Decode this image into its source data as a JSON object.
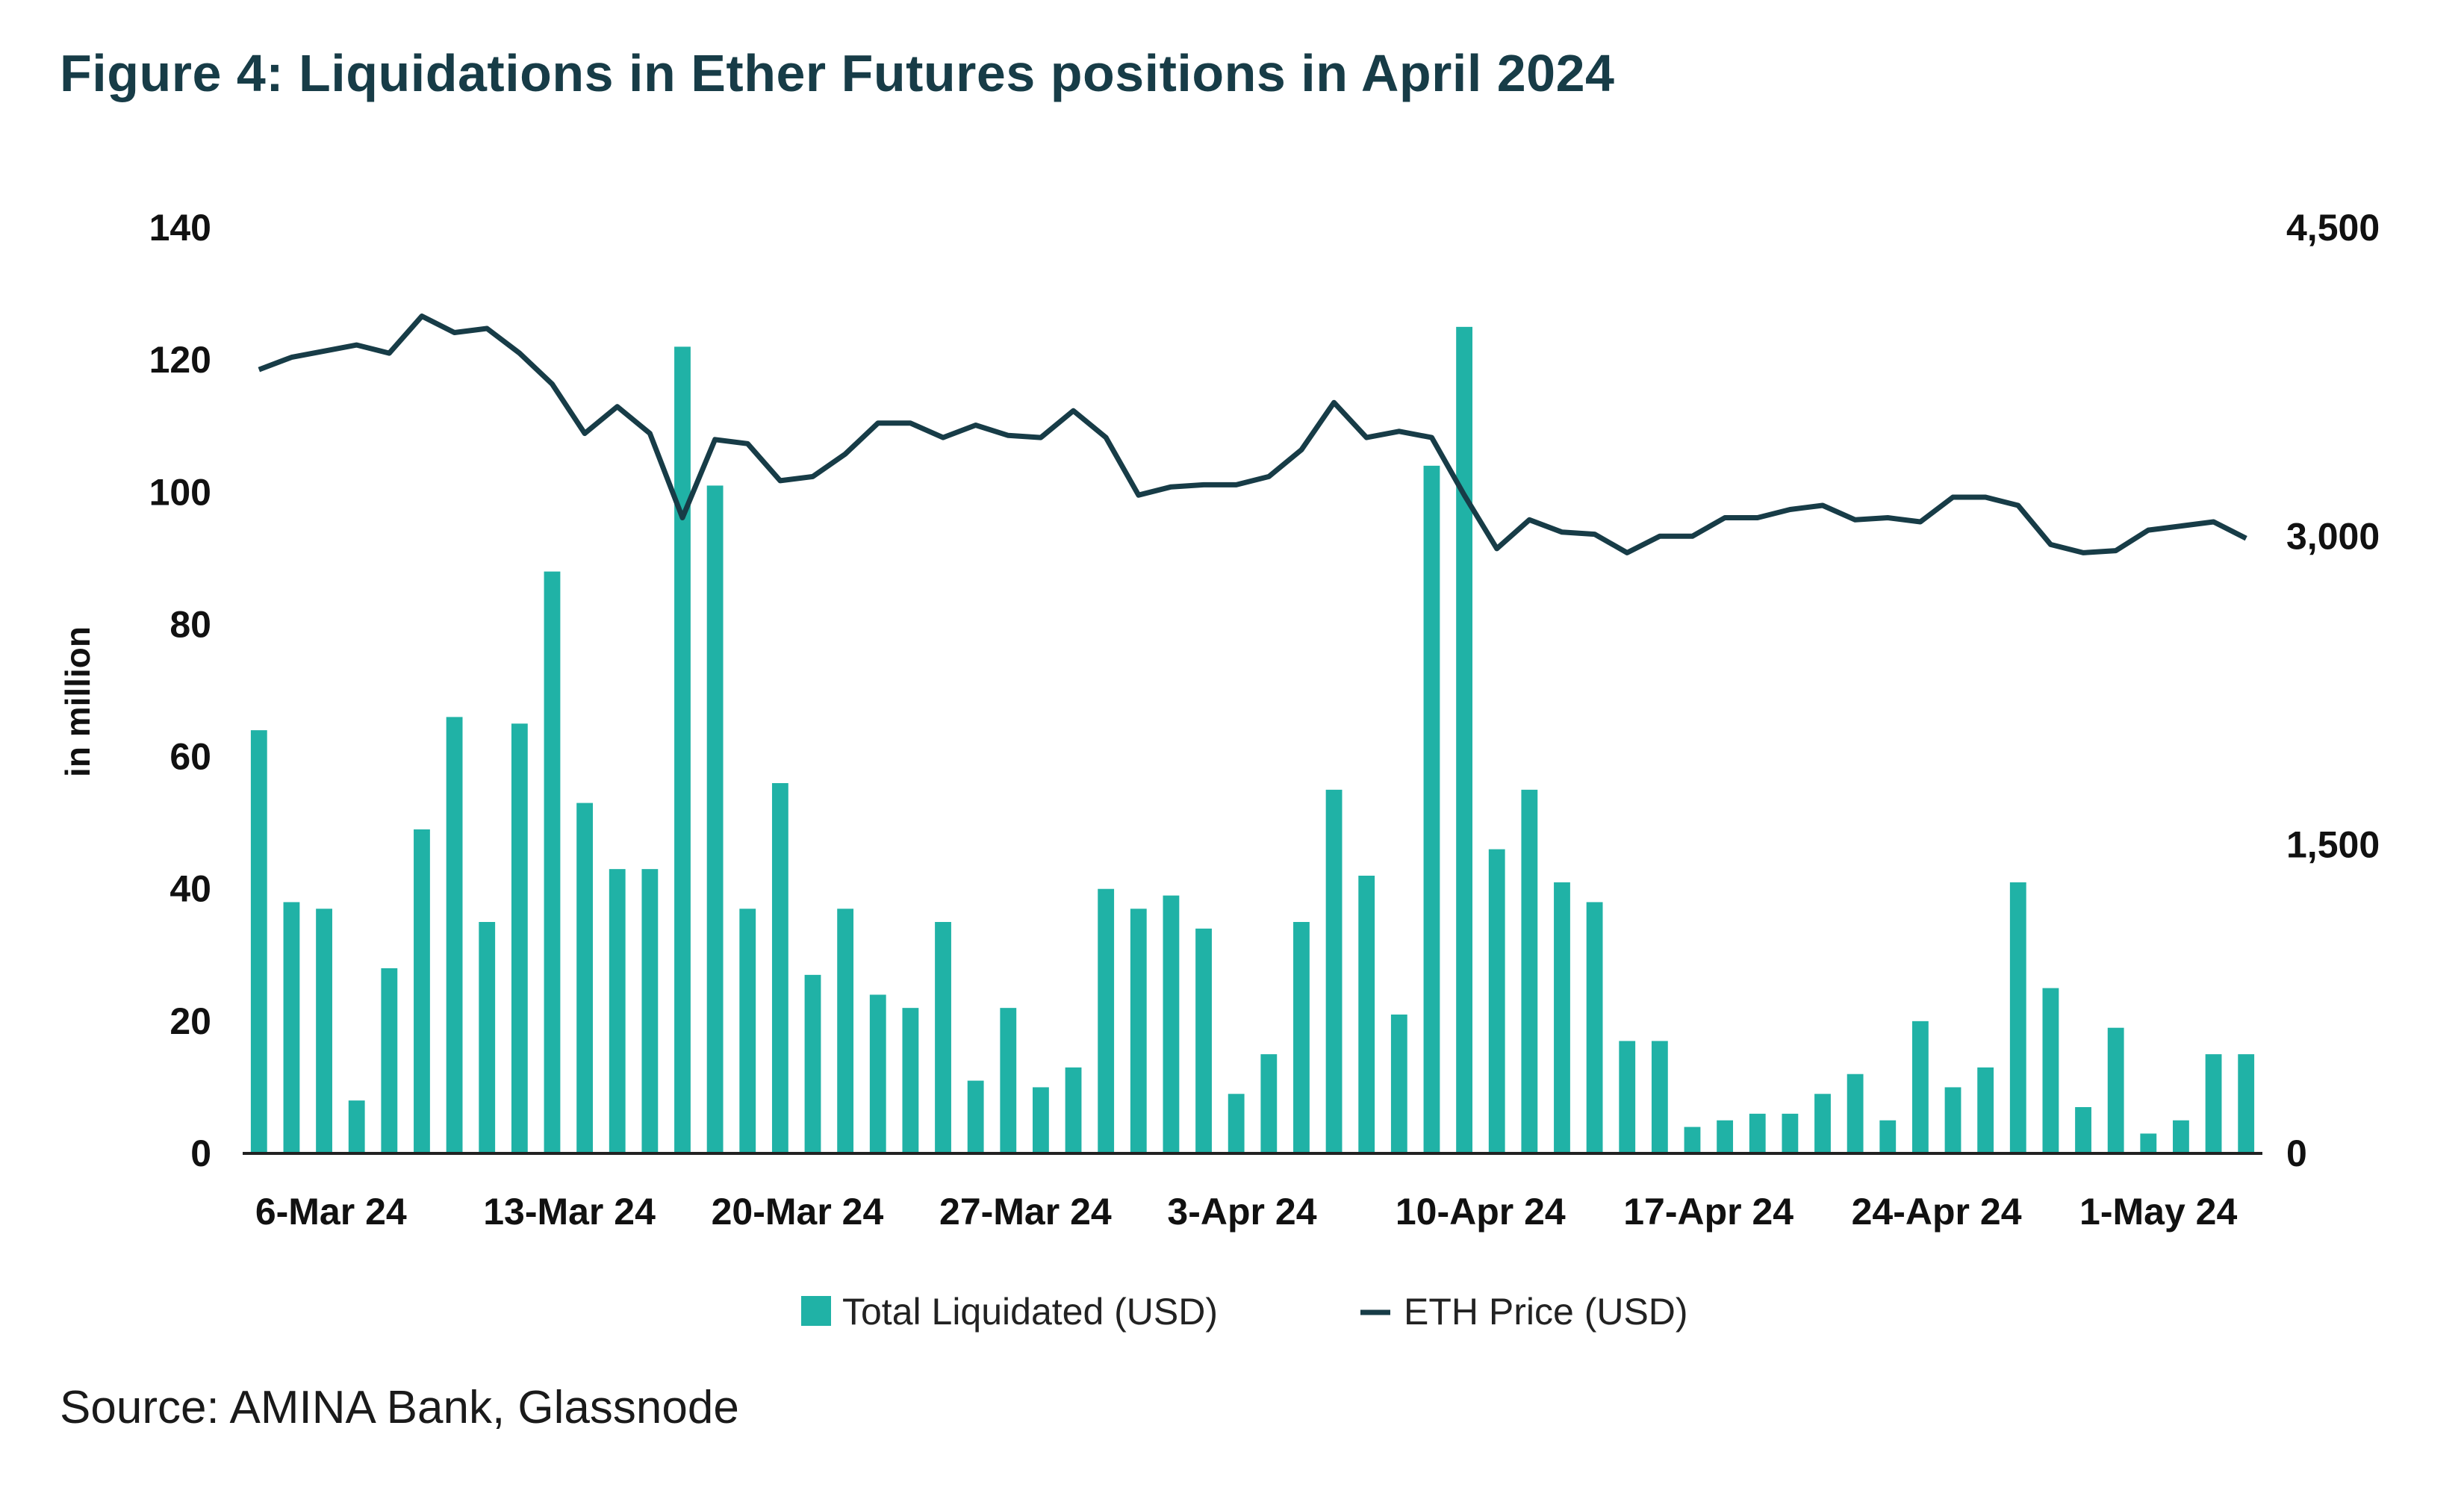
{
  "title": "Figure 4: Liquidations in Ether Futures positions in April 2024",
  "source": "Source: AMINA Bank, Glassnode",
  "chart_data": {
    "type": "bar",
    "ylabel": "in million",
    "y_left": {
      "ylim": [
        0,
        140
      ],
      "ticks": [
        "0",
        "20",
        "40",
        "60",
        "80",
        "100",
        "120",
        "140"
      ]
    },
    "y_right": {
      "ylim": [
        0,
        4500
      ],
      "ticks": [
        "0",
        "1,500",
        "3,000",
        "4,500"
      ]
    },
    "x_tick_labels": [
      "6-Mar 24",
      "13-Mar 24",
      "20-Mar 24",
      "27-Mar 24",
      "3-Apr 24",
      "10-Apr 24",
      "17-Apr 24",
      "24-Apr 24",
      "1-May 24"
    ],
    "x": [
      "6-Mar 24",
      "7-Mar 24",
      "8-Mar 24",
      "9-Mar 24",
      "10-Mar 24",
      "11-Mar 24",
      "12-Mar 24",
      "13-Mar 24",
      "14-Mar 24",
      "15-Mar 24",
      "16-Mar 24",
      "17-Mar 24",
      "18-Mar 24",
      "19-Mar 24",
      "20-Mar 24",
      "21-Mar 24",
      "22-Mar 24",
      "23-Mar 24",
      "24-Mar 24",
      "25-Mar 24",
      "26-Mar 24",
      "27-Mar 24",
      "28-Mar 24",
      "29-Mar 24",
      "30-Mar 24",
      "31-Mar 24",
      "1-Apr 24",
      "2-Apr 24",
      "3-Apr 24",
      "4-Apr 24",
      "5-Apr 24",
      "6-Apr 24",
      "7-Apr 24",
      "8-Apr 24",
      "9-Apr 24",
      "10-Apr 24",
      "11-Apr 24",
      "12-Apr 24",
      "13-Apr 24",
      "14-Apr 24",
      "15-Apr 24",
      "16-Apr 24",
      "17-Apr 24",
      "18-Apr 24",
      "19-Apr 24",
      "20-Apr 24",
      "21-Apr 24",
      "22-Apr 24",
      "23-Apr 24",
      "24-Apr 24",
      "25-Apr 24",
      "26-Apr 24",
      "27-Apr 24",
      "28-Apr 24",
      "29-Apr 24",
      "30-Apr 24",
      "1-May 24",
      "2-May 24",
      "3-May 24",
      "4-May 24",
      "5-May 24",
      "6-May 24"
    ],
    "series": [
      {
        "name": "Total Liquidated (USD)",
        "kind": "bar",
        "axis": "left",
        "color": "#20b2a6",
        "values": [
          64,
          38,
          37,
          8,
          28,
          49,
          66,
          35,
          65,
          88,
          53,
          43,
          43,
          122,
          101,
          37,
          56,
          27,
          37,
          24,
          22,
          35,
          11,
          22,
          10,
          13,
          40,
          37,
          39,
          34,
          9,
          15,
          35,
          55,
          42,
          21,
          104,
          125,
          46,
          55,
          41,
          38,
          17,
          17,
          4,
          5,
          6,
          6,
          9,
          12,
          5,
          20,
          10,
          13,
          41,
          25,
          7,
          19,
          3,
          5,
          15,
          15
        ]
      },
      {
        "name": "ETH Price (USD)",
        "kind": "line",
        "axis": "right",
        "color": "#173c47",
        "values": [
          3810,
          3870,
          3900,
          3930,
          3890,
          4070,
          3990,
          4010,
          3890,
          3740,
          3500,
          3630,
          3500,
          3090,
          3470,
          3450,
          3270,
          3290,
          3400,
          3550,
          3550,
          3480,
          3540,
          3490,
          3480,
          3610,
          3480,
          3200,
          3240,
          3250,
          3250,
          3290,
          3420,
          3650,
          3480,
          3510,
          3480,
          3200,
          2940,
          3080,
          3020,
          3010,
          2920,
          3000,
          3000,
          3090,
          3090,
          3130,
          3150,
          3080,
          3090,
          3070,
          3190,
          3190,
          3150,
          2960,
          2920,
          2930,
          3030,
          3050,
          3070,
          2990
        ]
      }
    ],
    "legend": {
      "position": "bottom"
    },
    "grid": false
  }
}
